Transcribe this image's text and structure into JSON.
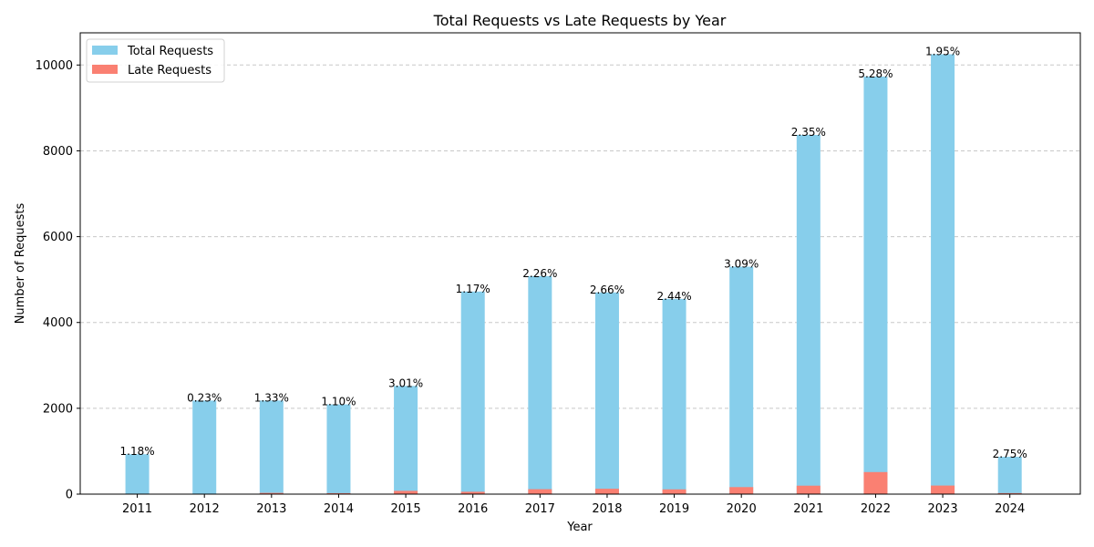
{
  "chart_data": {
    "type": "bar",
    "title": "Total Requests vs Late Requests by Year",
    "xlabel": "Year",
    "ylabel": "Number of Requests",
    "categories": [
      "2011",
      "2012",
      "2013",
      "2014",
      "2015",
      "2016",
      "2017",
      "2018",
      "2019",
      "2020",
      "2021",
      "2022",
      "2023",
      "2024"
    ],
    "series": [
      {
        "name": "Total Requests",
        "color": "#87ceeb",
        "values": [
          930,
          2180,
          2180,
          2090,
          2520,
          4720,
          5080,
          4700,
          4550,
          5300,
          8370,
          9730,
          10250,
          870
        ]
      },
      {
        "name": "Late Requests",
        "color": "#fa8072",
        "values": [
          11,
          5,
          29,
          23,
          76,
          55,
          115,
          125,
          111,
          164,
          197,
          514,
          200,
          24
        ]
      }
    ],
    "data_labels": [
      "1.18%",
      "0.23%",
      "1.33%",
      "1.10%",
      "3.01%",
      "1.17%",
      "2.26%",
      "2.66%",
      "2.44%",
      "3.09%",
      "2.35%",
      "5.28%",
      "1.95%",
      "2.75%"
    ],
    "yticks": [
      "0",
      "2000",
      "4000",
      "6000",
      "8000",
      "10000"
    ],
    "ylim": [
      0,
      10750
    ],
    "grid": "horizontal dashed",
    "legend_position": "top-left"
  }
}
